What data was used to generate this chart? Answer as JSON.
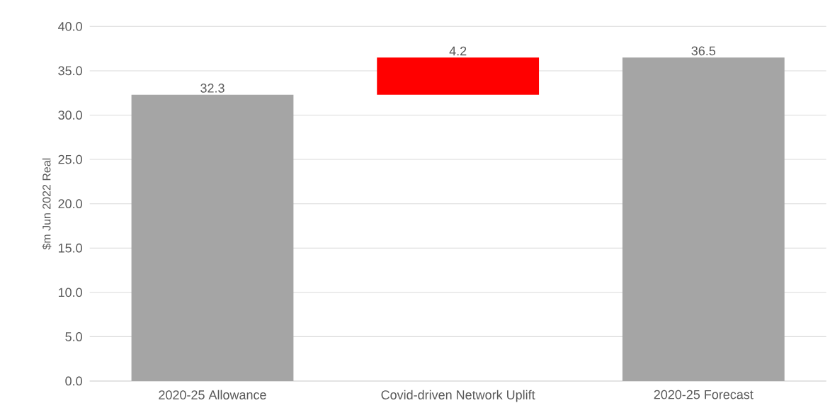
{
  "chart_data": {
    "type": "bar",
    "ylabel": "$m Jun 2022 Real",
    "categories": [
      "2020-25 Allowance",
      "Covid-driven Network Uplift",
      "2020-25 Forecast"
    ],
    "values": [
      32.3,
      4.2,
      36.5
    ],
    "base": [
      0,
      32.3,
      0
    ],
    "colors": [
      "#a5a5a5",
      "#ff0000",
      "#a5a5a5"
    ],
    "ylim": [
      0,
      40
    ],
    "yticks": [
      {
        "value": 0,
        "label": "0.0"
      },
      {
        "value": 5,
        "label": "5.0"
      },
      {
        "value": 10,
        "label": "10.0"
      },
      {
        "value": 15,
        "label": "15.0"
      },
      {
        "value": 20,
        "label": "20.0"
      },
      {
        "value": 25,
        "label": "25.0"
      },
      {
        "value": 30,
        "label": "30.0"
      },
      {
        "value": 35,
        "label": "35.0"
      },
      {
        "value": 40,
        "label": "40.0"
      }
    ],
    "grid": "y",
    "data_labels": true
  }
}
